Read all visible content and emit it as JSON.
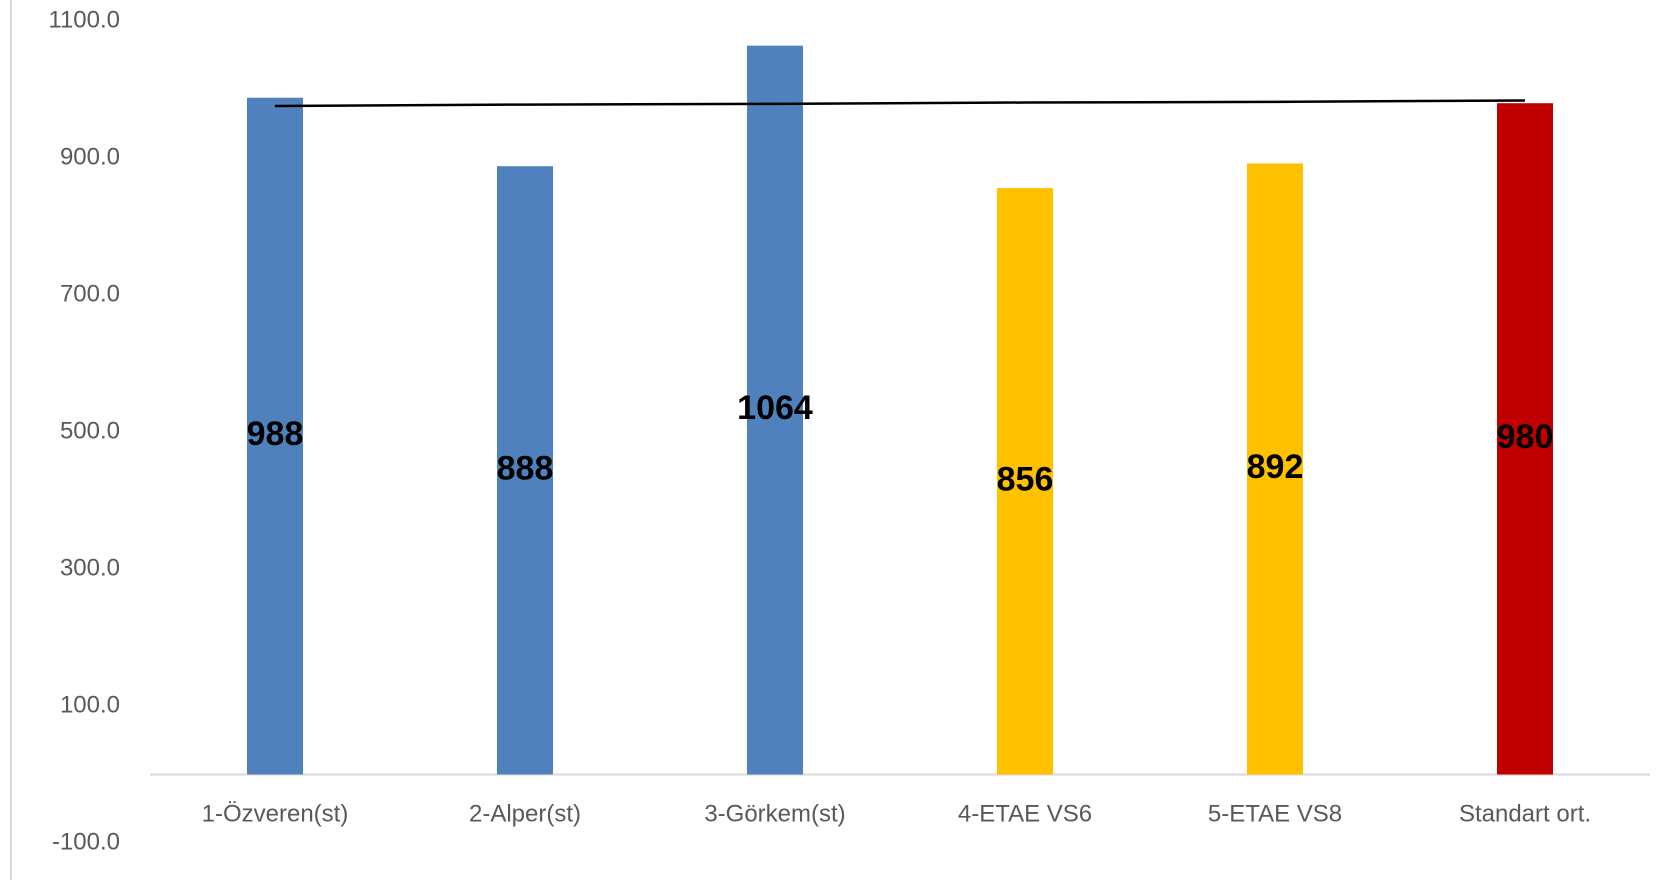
{
  "chart_data": {
    "type": "bar",
    "categories": [
      "1-Özveren(st)",
      "2-Alper(st)",
      "3-Görkem(st)",
      "4-ETAE VS6",
      "5-ETAE VS8",
      "Standart ort."
    ],
    "values": [
      988,
      888,
      1064,
      856,
      892,
      980
    ],
    "colors": [
      "#4f81bd",
      "#4f81bd",
      "#4f81bd",
      "#ffc000",
      "#ffc000",
      "#c00000"
    ],
    "line": {
      "values": [
        976,
        978,
        979,
        981,
        982,
        984
      ],
      "color": "#000000"
    },
    "ylim": [
      -100,
      1100
    ],
    "yticks": [
      {
        "value": -100,
        "label": "-100.0"
      },
      {
        "value": 100,
        "label": "100.0"
      },
      {
        "value": 300,
        "label": "300.0"
      },
      {
        "value": 500,
        "label": "500.0"
      },
      {
        "value": 700,
        "label": "700.0"
      },
      {
        "value": 900,
        "label": "900.0"
      },
      {
        "value": 1100,
        "label": "1100.0"
      }
    ]
  }
}
